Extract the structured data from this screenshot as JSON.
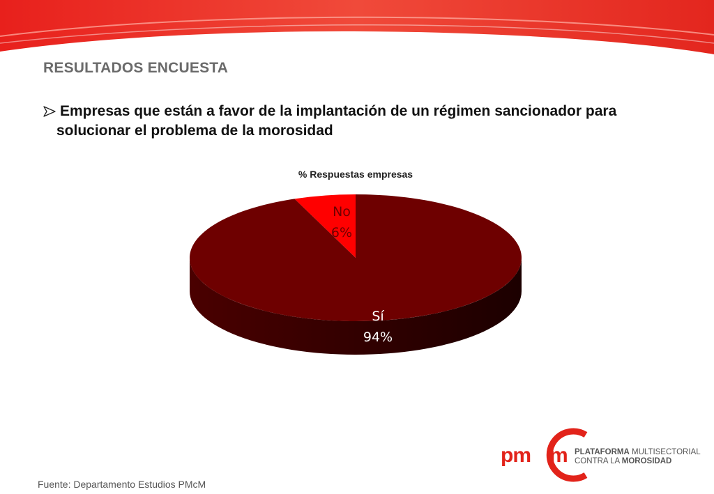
{
  "slide": {
    "section_title": "RESULTADOS ENCUESTA",
    "bullet_line1": "Empresas que están a favor de la implantación de un régimen sancionador para",
    "bullet_line2": "solucionar el problema de la morosidad",
    "source": "Fuente: Departamento Estudios PMcM"
  },
  "logo": {
    "mark_left": "pm",
    "mark_right": "m",
    "line1_bold": "PLATAFORMA",
    "line1_rest": " MULTISECTORIAL",
    "line2_rest": "CONTRA LA ",
    "line2_bold": "MOROSIDAD"
  },
  "colors": {
    "brand_red": "#e2231a",
    "si_slice": "#6e0000",
    "no_slice": "#ff0000"
  },
  "chart_data": {
    "type": "pie",
    "title": "% Respuestas empresas",
    "categories": [
      "No",
      "Sí"
    ],
    "values": [
      6,
      94
    ],
    "labels": [
      "6%",
      "94%"
    ],
    "style": "3d"
  }
}
